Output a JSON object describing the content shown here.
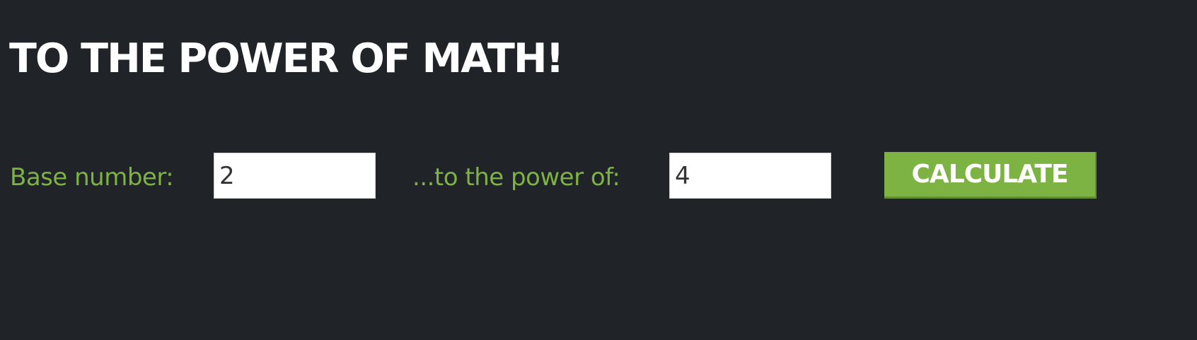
{
  "header": {
    "title": "TO THE POWER OF MATH!"
  },
  "form": {
    "base_label": "Base number:",
    "base_value": "2",
    "power_label": "...to the power of:",
    "power_value": "4",
    "calculate_label": "CALCULATE"
  },
  "colors": {
    "background": "#202327",
    "accent": "#7cb342",
    "title": "#ffffff"
  }
}
